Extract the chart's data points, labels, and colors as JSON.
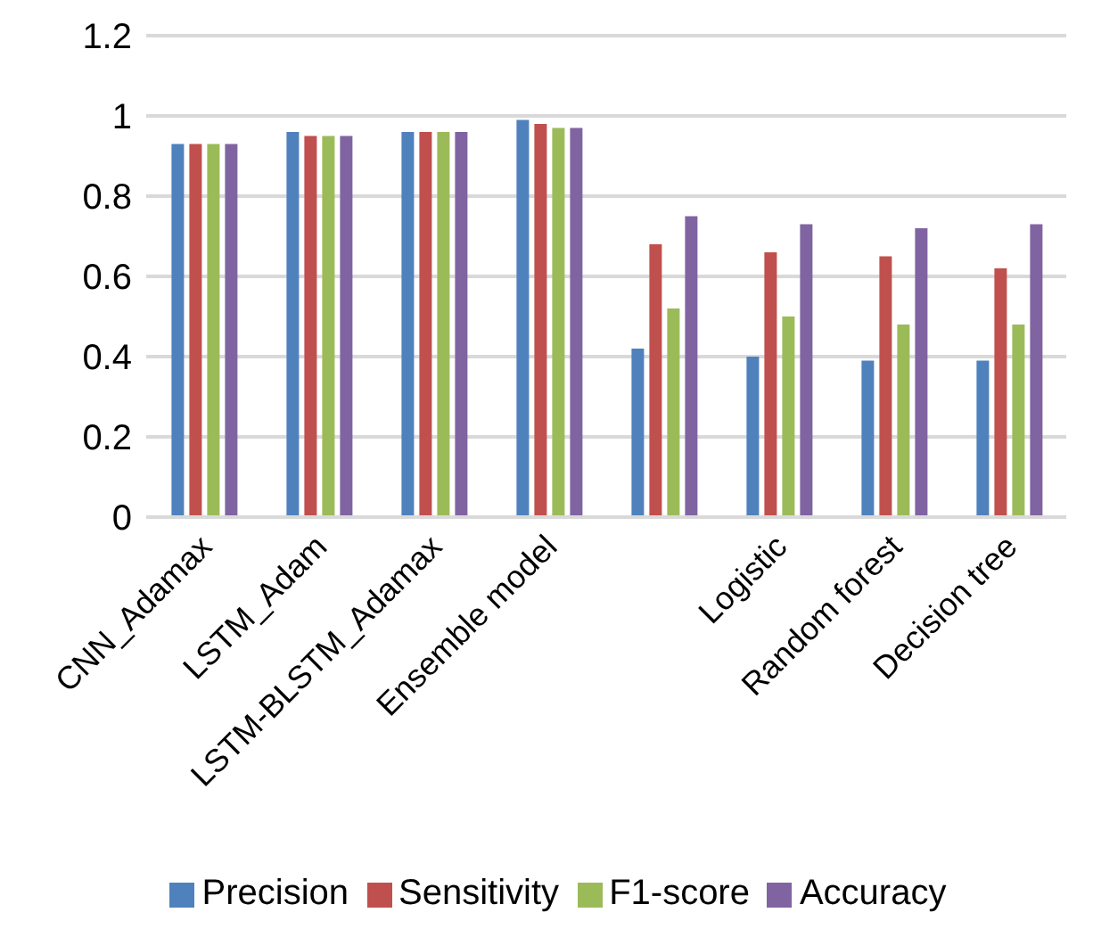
{
  "chart_data": {
    "type": "bar",
    "categories": [
      "CNN_Adamax",
      "LSTM_Adam",
      "LSTM-BLSTM_Adamax",
      "Ensemble model",
      null,
      "Logistic",
      "Random forest",
      "Decision tree"
    ],
    "series": [
      {
        "name": "Precision",
        "color": "#4f81bd",
        "values": [
          0.93,
          0.96,
          0.96,
          0.99,
          0.42,
          0.4,
          0.39,
          0.39
        ]
      },
      {
        "name": "Sensitivity",
        "color": "#c0504d",
        "values": [
          0.93,
          0.95,
          0.96,
          0.98,
          0.68,
          0.66,
          0.65,
          0.62
        ]
      },
      {
        "name": "F1-score",
        "color": "#9bbb59",
        "values": [
          0.93,
          0.95,
          0.96,
          0.97,
          0.52,
          0.5,
          0.48,
          0.48
        ]
      },
      {
        "name": "Accuracy",
        "color": "#8064a2",
        "values": [
          0.93,
          0.95,
          0.96,
          0.97,
          0.75,
          0.73,
          0.72,
          0.73
        ]
      }
    ],
    "ylim": [
      0,
      1.2
    ],
    "yticks": [
      0,
      0.2,
      0.4,
      0.6,
      0.8,
      1,
      1.2
    ],
    "grid": "y",
    "legend": "bottom"
  }
}
